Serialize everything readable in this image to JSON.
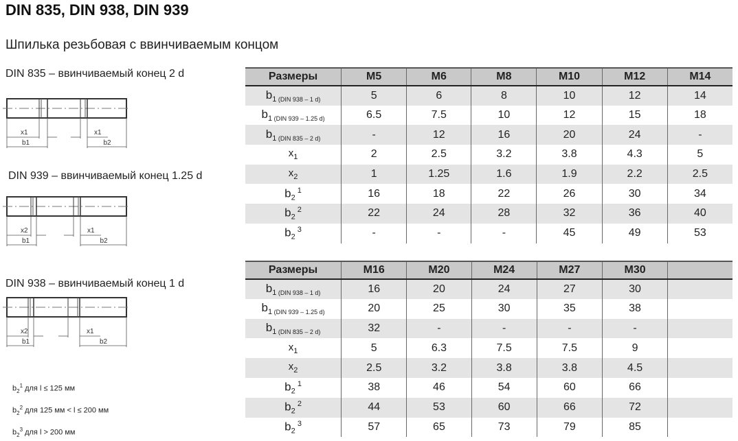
{
  "title": "DIN 835, DIN 938, DIN 939",
  "subtitle": "Шпилька резьбовая с ввинчиваемым концом",
  "diagrams": [
    {
      "caption": "DIN 835 – ввинчиваемый конец 2 d",
      "left_x": "x1",
      "right_x": "x1",
      "left_b": "b1",
      "right_b": "b2"
    },
    {
      "caption": "DIN 939 – ввинчиваемый конец 1.25 d",
      "left_x": "x2",
      "right_x": "x1",
      "left_b": "b1",
      "right_b": "b2"
    },
    {
      "caption": "DIN 938 – ввинчиваемый конец 1 d",
      "left_x": "x2",
      "right_x": "x1",
      "left_b": "b1",
      "right_b": "b2"
    }
  ],
  "notes": [
    {
      "sym": "b",
      "sub": "2",
      "sup": "1",
      "text": "для l ≤ 125 мм"
    },
    {
      "sym": "b",
      "sub": "2",
      "sup": "2",
      "text": "для 125 мм < l ≤ 200 мм"
    },
    {
      "sym": "b",
      "sub": "2",
      "sup": "3",
      "text": "для l > 200 мм"
    }
  ],
  "row_labels": [
    {
      "sym": "b",
      "sub": "1",
      "note": "(DIN 938 – 1 d)"
    },
    {
      "sym": "b",
      "sub": "1",
      "note": "(DIN 939 – 1.25 d)"
    },
    {
      "sym": "b",
      "sub": "1",
      "note": "(DIN 835 – 2 d)"
    },
    {
      "sym": "x",
      "sub": "1"
    },
    {
      "sym": "x",
      "sub": "2"
    },
    {
      "sym": "b",
      "sub": "2",
      "sup": "1"
    },
    {
      "sym": "b",
      "sub": "2",
      "sup": "2"
    },
    {
      "sym": "b",
      "sub": "2",
      "sup": "3"
    }
  ],
  "tables": [
    {
      "header": "Размеры",
      "columns": [
        "M5",
        "M6",
        "M8",
        "M10",
        "M12",
        "M14"
      ],
      "rows": [
        [
          "5",
          "6",
          "8",
          "10",
          "12",
          "14"
        ],
        [
          "6.5",
          "7.5",
          "10",
          "12",
          "15",
          "18"
        ],
        [
          "-",
          "12",
          "16",
          "20",
          "24",
          "-"
        ],
        [
          "2",
          "2.5",
          "3.2",
          "3.8",
          "4.3",
          "5"
        ],
        [
          "1",
          "1.25",
          "1.6",
          "1.9",
          "2.2",
          "2.5"
        ],
        [
          "16",
          "18",
          "22",
          "26",
          "30",
          "34"
        ],
        [
          "22",
          "24",
          "28",
          "32",
          "36",
          "40"
        ],
        [
          "-",
          "-",
          "-",
          "45",
          "49",
          "53"
        ]
      ]
    },
    {
      "header": "Размеры",
      "columns": [
        "M16",
        "M20",
        "M24",
        "M27",
        "M30",
        ""
      ],
      "rows": [
        [
          "16",
          "20",
          "24",
          "27",
          "30",
          ""
        ],
        [
          "20",
          "25",
          "30",
          "35",
          "38",
          ""
        ],
        [
          "32",
          "-",
          "-",
          "-",
          "-",
          ""
        ],
        [
          "5",
          "6.3",
          "7.5",
          "7.5",
          "9",
          ""
        ],
        [
          "2.5",
          "3.2",
          "3.8",
          "3.8",
          "4.5",
          ""
        ],
        [
          "38",
          "46",
          "54",
          "60",
          "66",
          ""
        ],
        [
          "44",
          "53",
          "60",
          "66",
          "72",
          ""
        ],
        [
          "57",
          "65",
          "73",
          "79",
          "85",
          ""
        ]
      ]
    }
  ]
}
